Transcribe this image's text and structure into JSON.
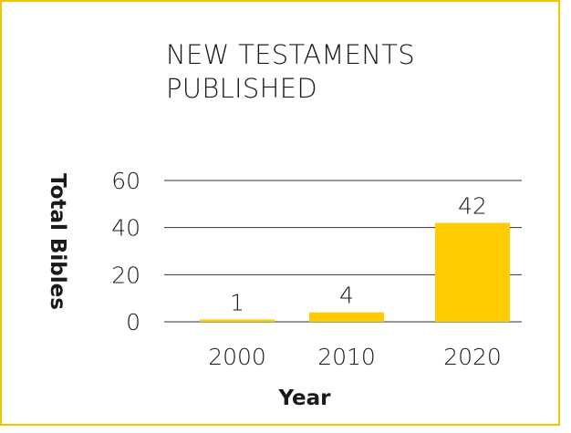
{
  "chart_data": {
    "type": "bar",
    "title": "NEW TESTAMENTS PUBLISHED",
    "xlabel": "Year",
    "ylabel": "Total Bibles",
    "categories": [
      "2000",
      "2010",
      "2020"
    ],
    "values": [
      1,
      4,
      42
    ],
    "data_labels": [
      "1",
      "4",
      "42"
    ],
    "yticks": [
      0,
      20,
      40,
      60
    ],
    "ylim": [
      0,
      60
    ],
    "grid": true,
    "legend": "none"
  },
  "colors": {
    "bar": "#ffcc00",
    "border": "#f5c400",
    "text": "#1a1a1a",
    "grid": "#333333"
  }
}
